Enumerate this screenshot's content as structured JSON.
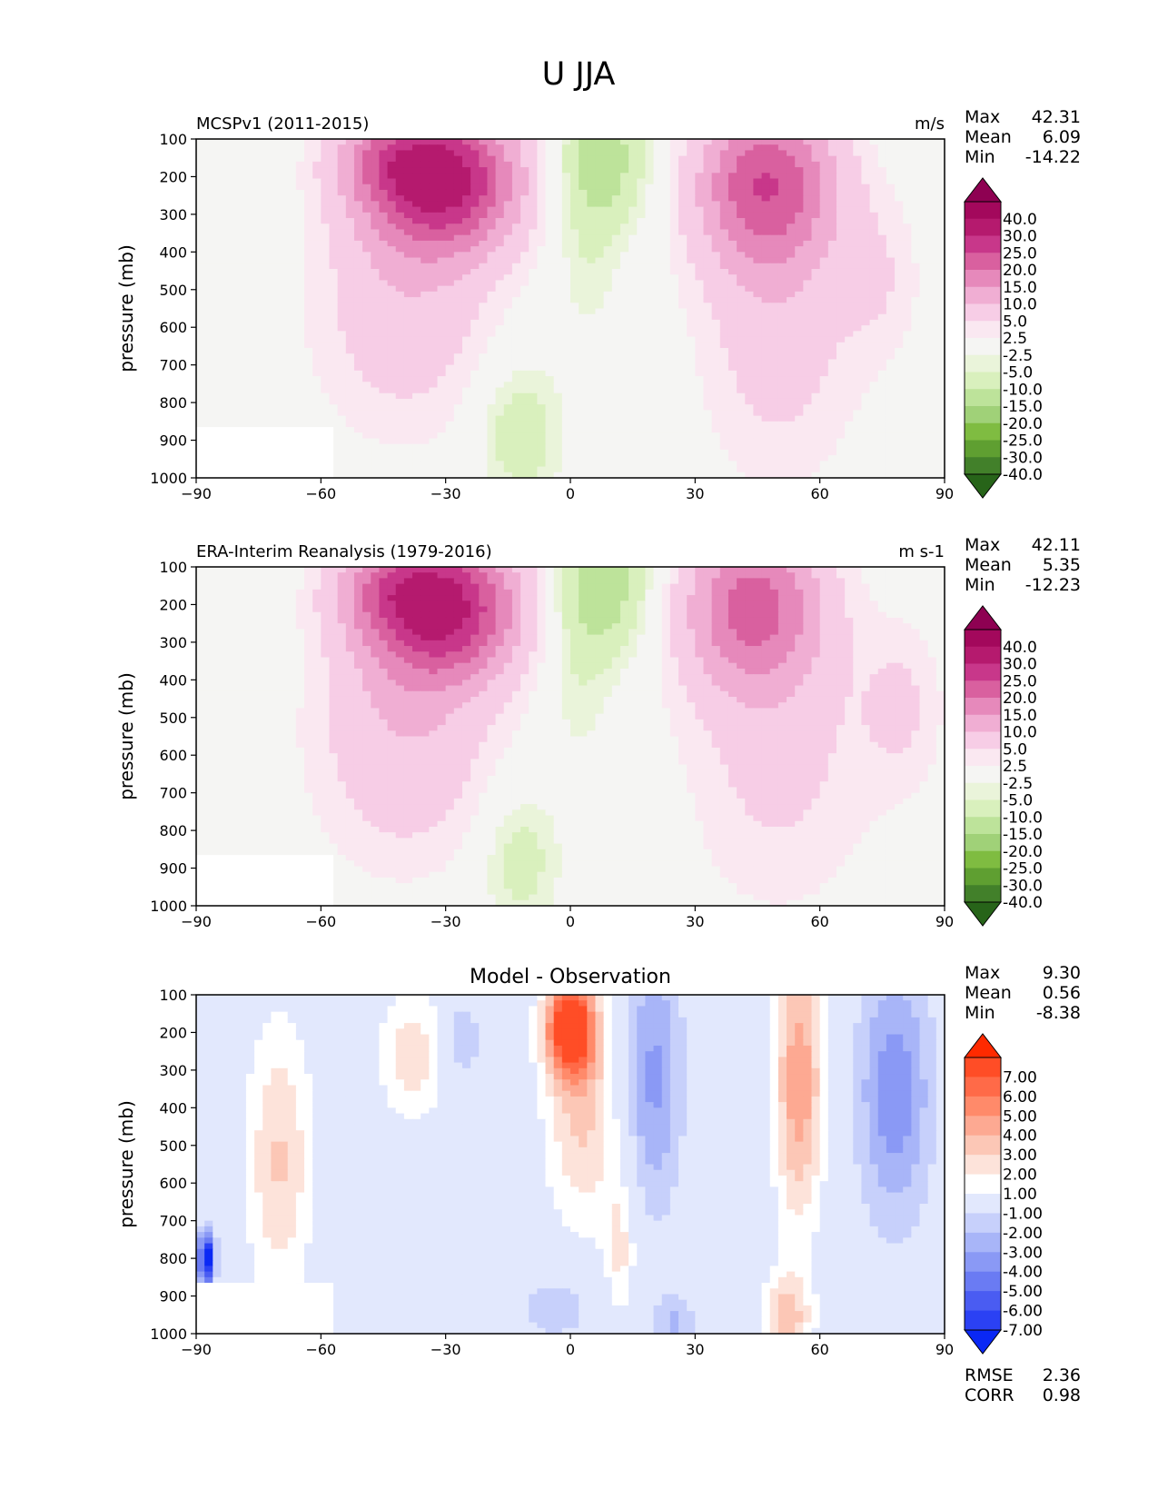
{
  "figure": {
    "title": "U JJA"
  },
  "chart_data": [
    {
      "type": "contour",
      "title": "MCSPv1 (2011-2015)",
      "units": "m/s",
      "xlabel": "",
      "ylabel": "pressure (mb)",
      "xlim": [
        -90,
        90
      ],
      "ylim": [
        1000,
        100
      ],
      "xticks": [
        "−90",
        "−60",
        "−30",
        "0",
        "30",
        "60",
        "90"
      ],
      "yticks": [
        "100",
        "200",
        "300",
        "400",
        "500",
        "600",
        "700",
        "800",
        "900",
        "1000"
      ],
      "stats": [
        {
          "label": "Max",
          "value": "42.31"
        },
        {
          "label": "Mean",
          "value": "6.09"
        },
        {
          "label": "Min",
          "value": "-14.22"
        }
      ],
      "colorbar": {
        "labels": [
          "40.0",
          "30.0",
          "25.0",
          "20.0",
          "15.0",
          "10.0",
          "5.0",
          "2.5",
          "-2.5",
          "-5.0",
          "-10.0",
          "-15.0",
          "-20.0",
          "-25.0",
          "-30.0",
          "-40.0"
        ],
        "colors": [
          "#8e0152",
          "#a3085c",
          "#b51a6e",
          "#c8378a",
          "#d9609f",
          "#e689bb",
          "#f0aed3",
          "#f7cde6",
          "#fae8f1",
          "#f5f5f3",
          "#eaf4da",
          "#d9f0bd",
          "#bde39a",
          "#a0d178",
          "#7fbc41",
          "#5f9f31",
          "#42802a",
          "#276419"
        ]
      },
      "features": [
        {
          "x": -30,
          "p": 200,
          "value": 42.3,
          "kind": "max"
        },
        {
          "x": 48,
          "p": 210,
          "value": 27
        },
        {
          "x": -12,
          "p": 870,
          "value": -8
        },
        {
          "x": 8,
          "p": 150,
          "value": -12
        }
      ]
    },
    {
      "type": "contour",
      "title": "ERA-Interim Reanalysis (1979-2016)",
      "units": "m s-1",
      "xlabel": "",
      "ylabel": "pressure (mb)",
      "xlim": [
        -90,
        90
      ],
      "ylim": [
        1000,
        100
      ],
      "xticks": [
        "−90",
        "−60",
        "−30",
        "0",
        "30",
        "60",
        "90"
      ],
      "yticks": [
        "100",
        "200",
        "300",
        "400",
        "500",
        "600",
        "700",
        "800",
        "900",
        "1000"
      ],
      "stats": [
        {
          "label": "Max",
          "value": "42.11"
        },
        {
          "label": "Mean",
          "value": "5.35"
        },
        {
          "label": "Min",
          "value": "-12.23"
        }
      ],
      "colorbar": {
        "labels": [
          "40.0",
          "30.0",
          "25.0",
          "20.0",
          "15.0",
          "10.0",
          "5.0",
          "2.5",
          "-2.5",
          "-5.0",
          "-10.0",
          "-15.0",
          "-20.0",
          "-25.0",
          "-30.0",
          "-40.0"
        ],
        "colors": [
          "#8e0152",
          "#a3085c",
          "#b51a6e",
          "#c8378a",
          "#d9609f",
          "#e689bb",
          "#f0aed3",
          "#f7cde6",
          "#fae8f1",
          "#f5f5f3",
          "#eaf4da",
          "#d9f0bd",
          "#bde39a",
          "#a0d178",
          "#7fbc41",
          "#5f9f31",
          "#42802a",
          "#276419"
        ]
      },
      "features": [
        {
          "x": -30,
          "p": 200,
          "value": 42.1,
          "kind": "max"
        },
        {
          "x": 43,
          "p": 200,
          "value": 26
        },
        {
          "x": -13,
          "p": 880,
          "value": -7
        },
        {
          "x": 6,
          "p": 150,
          "value": -12
        }
      ]
    },
    {
      "type": "contour",
      "title": "Model - Observation",
      "units": "",
      "xlabel": "",
      "ylabel": "pressure (mb)",
      "xlim": [
        -90,
        90
      ],
      "ylim": [
        1000,
        100
      ],
      "xticks": [
        "−90",
        "−60",
        "−30",
        "0",
        "30",
        "60",
        "90"
      ],
      "yticks": [
        "100",
        "200",
        "300",
        "400",
        "500",
        "600",
        "700",
        "800",
        "900",
        "1000"
      ],
      "stats": [
        {
          "label": "Max",
          "value": "9.30"
        },
        {
          "label": "Mean",
          "value": "0.56"
        },
        {
          "label": "Min",
          "value": "-8.38"
        }
      ],
      "metrics": [
        {
          "label": "RMSE",
          "value": "2.36"
        },
        {
          "label": "CORR",
          "value": "0.98"
        }
      ],
      "colorbar": {
        "labels": [
          "7.00",
          "6.00",
          "5.00",
          "4.00",
          "3.00",
          "2.00",
          "1.00",
          "-1.00",
          "-2.00",
          "-3.00",
          "-4.00",
          "-5.00",
          "-6.00",
          "-7.00"
        ],
        "colors": [
          "#ff2a00",
          "#ff4d26",
          "#ff6a48",
          "#ff8a6a",
          "#fda992",
          "#fcc7b6",
          "#fde3da",
          "#ffffff",
          "#e2e8fd",
          "#c7d0fb",
          "#a8b5f8",
          "#8a99f5",
          "#6a7bf3",
          "#4a5cf2",
          "#2b41f4",
          "#0a28f5"
        ]
      },
      "features": [
        {
          "x": 0,
          "p": 180,
          "value": 9.3,
          "kind": "max"
        },
        {
          "x": 55,
          "p": 350,
          "value": 5
        },
        {
          "x": 20,
          "p": 250,
          "value": -4
        },
        {
          "x": 78,
          "p": 350,
          "value": -4
        },
        {
          "x": -87,
          "p": 800,
          "value": -8.4,
          "kind": "min"
        }
      ]
    }
  ]
}
